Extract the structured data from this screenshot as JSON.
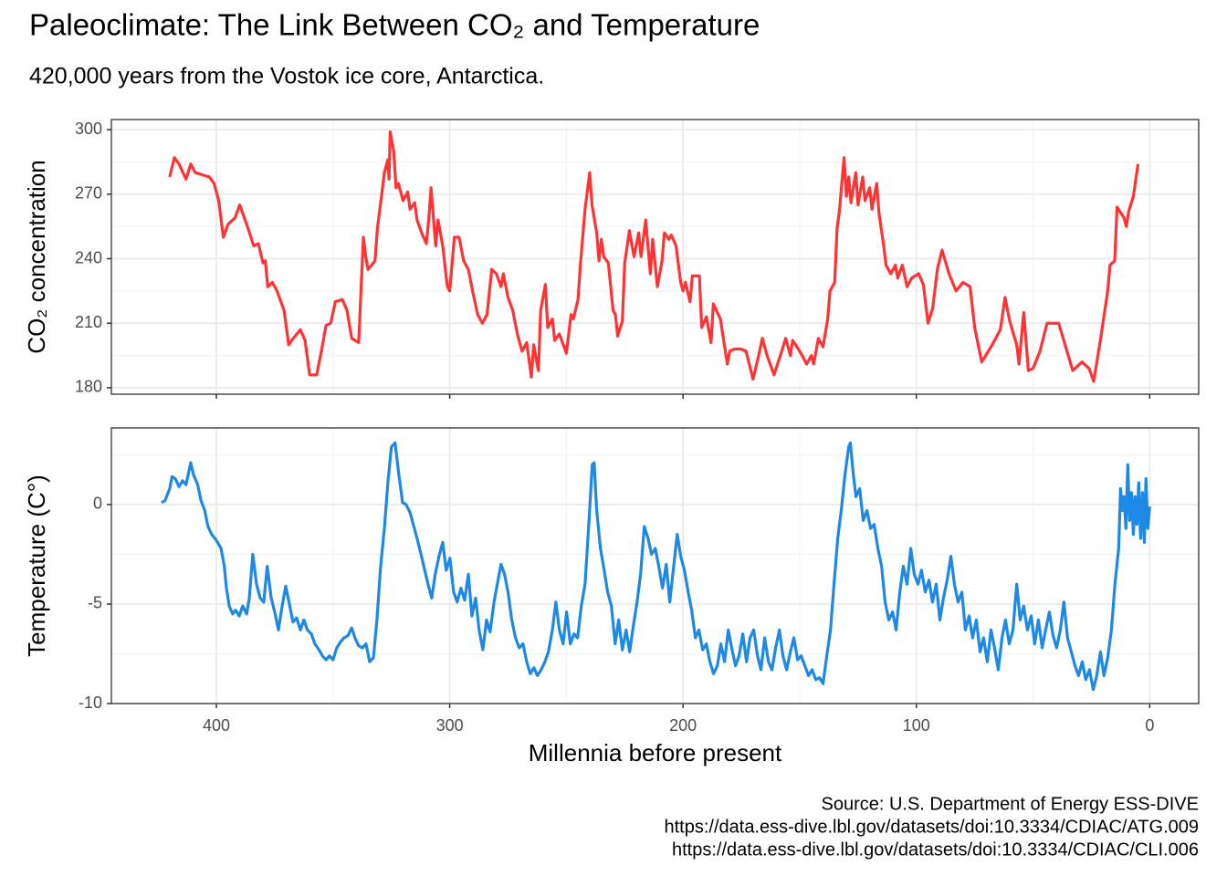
{
  "title": "Paleoclimate: The Link Between CO₂ and Temperature",
  "subtitle": "420,000 years from the Vostok ice core, Antarctica.",
  "caption": [
    "Source: U.S. Department of Energy ESS-DIVE",
    "https://data.ess-dive.lbl.gov/datasets/doi:10.3334/CDIAC/ATG.009",
    "https://data.ess-dive.lbl.gov/datasets/doi:10.3334/CDIAC/CLI.006"
  ],
  "chart_data": [
    {
      "type": "line",
      "ylabel": "CO₂ concentration",
      "color": "#ff3333",
      "grid": true,
      "show_x_tick_labels": false,
      "xlim": [
        445,
        -21
      ],
      "xticks": [
        400,
        300,
        200,
        100,
        0
      ],
      "x_minor_grid": [
        350,
        250,
        150,
        50
      ],
      "ylim": [
        177,
        304.7
      ],
      "yticks": [
        180,
        210,
        240,
        270,
        300
      ],
      "y_minor_grid": [
        195,
        225,
        255,
        285
      ],
      "x": [
        420,
        418,
        416,
        413,
        411,
        409,
        403,
        401,
        399,
        397,
        395,
        392,
        390,
        387,
        384,
        382,
        380,
        379,
        378,
        376,
        374,
        371,
        369,
        367,
        364,
        362,
        360,
        357,
        355,
        353,
        351,
        349,
        346,
        344,
        342,
        339,
        337,
        336,
        335,
        332,
        331,
        329,
        328,
        326.5,
        326,
        325.5,
        324,
        323,
        322,
        320,
        318,
        317,
        315,
        314,
        312,
        310,
        309,
        308,
        306,
        305,
        303,
        301,
        300,
        298,
        296,
        294,
        292,
        290,
        288,
        286,
        284,
        282,
        280,
        278,
        277,
        275,
        273,
        271,
        269,
        267,
        265,
        264,
        262,
        261,
        259,
        258,
        256,
        255,
        253,
        250,
        248,
        247,
        245,
        244,
        242,
        240,
        239,
        237,
        236,
        235,
        234,
        232,
        230,
        229,
        228,
        226,
        225,
        223,
        221,
        219,
        218,
        216,
        214,
        213,
        211,
        209,
        208,
        206,
        205,
        203,
        201,
        200,
        199,
        197,
        196,
        193,
        192,
        190,
        188,
        187,
        184,
        181,
        180,
        178,
        175,
        173,
        170,
        168,
        166,
        164,
        161,
        158,
        156,
        154,
        153,
        150,
        147,
        145,
        144,
        142,
        140,
        138,
        137,
        135,
        134,
        133,
        131,
        130,
        129,
        128,
        126,
        125,
        123,
        122,
        120,
        119,
        117,
        116,
        114,
        113,
        111,
        109,
        108,
        106,
        104,
        102,
        99,
        97,
        95,
        93,
        91,
        89,
        86,
        83,
        80,
        77,
        75,
        72,
        68,
        64,
        62,
        60,
        57,
        56,
        54,
        52,
        50,
        47,
        44,
        39,
        33,
        29,
        26,
        24,
        21,
        18,
        17,
        15,
        14,
        11,
        10,
        9,
        7,
        5
      ],
      "values": [
        278,
        287,
        284,
        277,
        284,
        280,
        278,
        275,
        267,
        250,
        256,
        259,
        265,
        256,
        246,
        247,
        238,
        239,
        227,
        229,
        225,
        216,
        200,
        203,
        207,
        202,
        186,
        186,
        197,
        209,
        210,
        220,
        221,
        216,
        203,
        201,
        250,
        241,
        235,
        239,
        254,
        271,
        280,
        286,
        277,
        299,
        290,
        273,
        275,
        267,
        271,
        263,
        266,
        258,
        252,
        247,
        258,
        273,
        246,
        258,
        246,
        227,
        225,
        250,
        250,
        239,
        235,
        224,
        214,
        210,
        214,
        235,
        233,
        227,
        233,
        222,
        216,
        205,
        197,
        201,
        185,
        200,
        188,
        216,
        228,
        208,
        212,
        202,
        205,
        196,
        214,
        212,
        221,
        237,
        263,
        280,
        265,
        252,
        239,
        249,
        241,
        238,
        216,
        214,
        204,
        211,
        238,
        253,
        241,
        252,
        241,
        258,
        233,
        249,
        227,
        239,
        252,
        249,
        251,
        246,
        229,
        225,
        229,
        220,
        232,
        232,
        208,
        213,
        201,
        219,
        212,
        191,
        197,
        198,
        198,
        197,
        184,
        193,
        203,
        195,
        186,
        196,
        203,
        195,
        202,
        197,
        191,
        195,
        191,
        203,
        199,
        212,
        225,
        229,
        254,
        262,
        287,
        269,
        278,
        266,
        280,
        265,
        278,
        267,
        273,
        263,
        275,
        261,
        246,
        237,
        233,
        237,
        231,
        237,
        227,
        231,
        233,
        228,
        210,
        217,
        235,
        244,
        233,
        225,
        229,
        227,
        208,
        192,
        199,
        207,
        222,
        211,
        200,
        191,
        215,
        188,
        189,
        197,
        210,
        210,
        188,
        192,
        189,
        183,
        203,
        225,
        237,
        239,
        264,
        259,
        255,
        262,
        269,
        284
      ]
    },
    {
      "type": "line",
      "ylabel": "Temperature (C°)",
      "xlabel": "Millennia before present",
      "color": "#1e88e5",
      "grid": true,
      "show_x_tick_labels": true,
      "xlim": [
        445,
        -21
      ],
      "xticks": [
        400,
        300,
        200,
        100,
        0
      ],
      "x_minor_grid": [
        350,
        250,
        150,
        50
      ],
      "ylim": [
        -10,
        3.85
      ],
      "yticks": [
        -10,
        -5,
        0
      ],
      "y_minor_grid": [
        -7.5,
        -2.5,
        2.5
      ],
      "x": [
        423.5,
        422,
        420,
        419,
        417.6,
        416,
        414.5,
        413,
        411,
        409.8,
        408,
        406.6,
        405,
        403.6,
        402,
        400,
        398,
        396.6,
        395.7,
        394.5,
        393,
        391.8,
        390.2,
        388.7,
        387,
        385.9,
        384.4,
        382.8,
        381.2,
        379.7,
        378.2,
        376.5,
        375,
        373.4,
        371.8,
        370.3,
        368.7,
        367.2,
        365.6,
        364,
        362.5,
        361,
        359.3,
        357.8,
        356,
        354.6,
        353,
        351.5,
        350,
        348.4,
        346.8,
        345.3,
        343.7,
        342,
        340.6,
        339,
        337.4,
        335.9,
        334.3,
        332.7,
        331.2,
        329.6,
        328,
        326.5,
        325,
        323.4,
        321.8,
        320.2,
        318.7,
        317,
        315.6,
        314,
        312.5,
        310.9,
        309.3,
        307.7,
        306.2,
        304.6,
        303,
        301.5,
        299.9,
        298.3,
        296.8,
        295.2,
        293.6,
        292,
        290.5,
        288.9,
        287.4,
        285.8,
        284.2,
        282.7,
        281,
        279.6,
        278,
        276.5,
        275,
        273.4,
        271.8,
        270.2,
        268.6,
        267,
        265.5,
        263.9,
        262.4,
        260.8,
        259.2,
        257.7,
        256,
        254.5,
        253,
        251.4,
        249.9,
        248.3,
        246.7,
        245.2,
        243.6,
        242,
        240.5,
        238.9,
        238.1,
        237,
        235.4,
        233.8,
        232.3,
        230.7,
        229.1,
        227.6,
        226,
        224.4,
        222.9,
        221.3,
        219.7,
        218.2,
        216.6,
        215,
        213.5,
        211.9,
        210.4,
        208.8,
        207.2,
        205.7,
        204,
        202.5,
        201,
        199.4,
        197.8,
        196.3,
        194.7,
        193.2,
        191.6,
        190,
        188.5,
        186.9,
        185.3,
        183.8,
        182.2,
        180.6,
        179,
        177.5,
        176,
        174.4,
        172.8,
        171.3,
        169.7,
        168.1,
        166.6,
        165,
        163.4,
        161.9,
        160.3,
        158.7,
        157.2,
        155.6,
        154,
        152.5,
        150.9,
        149.4,
        147.8,
        146.2,
        144.7,
        143.1,
        141.5,
        140,
        138.4,
        136.8,
        135.3,
        133.7,
        132.2,
        130.6,
        129,
        128.3,
        127,
        125.9,
        124.3,
        122.8,
        121.2,
        119.6,
        118.1,
        116.5,
        114.9,
        113.4,
        111.8,
        110.2,
        108.7,
        107.1,
        105.6,
        104,
        102.4,
        100.9,
        99.3,
        97.8,
        96.2,
        94.6,
        93.1,
        91.5,
        89.9,
        88.4,
        86.8,
        85.2,
        83.7,
        82.1,
        80.5,
        79,
        77.4,
        75.9,
        74.3,
        72.7,
        71.2,
        69.6,
        68,
        66.5,
        64.9,
        63.3,
        61.8,
        60.2,
        58.6,
        57,
        55.5,
        54,
        52.4,
        50.8,
        49.3,
        47.7,
        46.1,
        44.6,
        43,
        41.4,
        39.9,
        38.3,
        36.8,
        35.2,
        33.6,
        32,
        30.5,
        28.9,
        27.4,
        25.8,
        24.2,
        22.7,
        21.1,
        19.6,
        18,
        16.4,
        14.9,
        13.3,
        12.5,
        11.7,
        11,
        10.2,
        9.4,
        8.6,
        7.8,
        7,
        6.3,
        5.5,
        4.7,
        3.9,
        3.1,
        2.3,
        1.6,
        0.8,
        0
      ],
      "values": [
        0.1,
        0.2,
        0.8,
        1.4,
        1.3,
        0.9,
        1.2,
        1,
        2.1,
        1.5,
        1,
        0.2,
        -0.3,
        -1.1,
        -1.5,
        -1.8,
        -2.2,
        -3.1,
        -4.2,
        -5.1,
        -5.5,
        -5.3,
        -5.6,
        -5.1,
        -5.5,
        -4.7,
        -2.5,
        -4,
        -4.7,
        -4.9,
        -3.1,
        -4.7,
        -5.4,
        -6.3,
        -5.1,
        -4.1,
        -5,
        -5.9,
        -5.7,
        -6.3,
        -5.8,
        -6.3,
        -6.5,
        -7,
        -7.3,
        -7.6,
        -7.8,
        -7.6,
        -7.8,
        -7.2,
        -6.9,
        -6.7,
        -6.6,
        -6.2,
        -6.7,
        -7.1,
        -7.2,
        -7,
        -7.9,
        -7.7,
        -5.8,
        -3.1,
        -1.2,
        1.1,
        2.9,
        3.1,
        1.5,
        0.1,
        0,
        -0.4,
        -1,
        -1.7,
        -2.4,
        -3.2,
        -4,
        -4.7,
        -3.5,
        -2.6,
        -1.9,
        -3.3,
        -2.7,
        -4.4,
        -4.9,
        -4.2,
        -4.8,
        -3.5,
        -5.6,
        -4.7,
        -6.3,
        -7.3,
        -5.8,
        -6.4,
        -4.9,
        -4,
        -3,
        -3.5,
        -4.4,
        -5.8,
        -6.7,
        -7.2,
        -7,
        -7.9,
        -8.5,
        -8.2,
        -8.6,
        -8.3,
        -7.9,
        -7.4,
        -6.3,
        -4.9,
        -6.3,
        -7,
        -5.4,
        -7,
        -6.5,
        -6.7,
        -5.1,
        -4,
        -1.2,
        2,
        2.1,
        -0.3,
        -2.2,
        -3.3,
        -4.4,
        -5.1,
        -7,
        -5.8,
        -7.3,
        -6.3,
        -7.4,
        -6.1,
        -4.9,
        -3.5,
        -1.1,
        -1.7,
        -2.5,
        -2.2,
        -3.1,
        -4.2,
        -3,
        -4.9,
        -3.1,
        -1.5,
        -2.6,
        -3.3,
        -4.4,
        -5.3,
        -6.7,
        -6.3,
        -7.3,
        -7,
        -7.9,
        -8.5,
        -8.1,
        -7,
        -7.9,
        -6.3,
        -7.3,
        -8.1,
        -7.6,
        -6.5,
        -7.9,
        -6.7,
        -6.3,
        -7.6,
        -8.3,
        -6.7,
        -7.9,
        -8.3,
        -7.2,
        -6.3,
        -7.6,
        -8.3,
        -7.4,
        -6.7,
        -7.8,
        -7.6,
        -8.1,
        -8.6,
        -8.3,
        -8.8,
        -8.7,
        -9,
        -7.6,
        -6.3,
        -4,
        -1.7,
        -0.3,
        1.5,
        2.9,
        3.1,
        1.5,
        0.4,
        0.8,
        -0.8,
        -0.3,
        -1.2,
        -1,
        -2.2,
        -3.1,
        -4.9,
        -5.8,
        -5.4,
        -6.3,
        -4.4,
        -3.1,
        -4,
        -2.2,
        -3.5,
        -4,
        -3.3,
        -4.4,
        -3.8,
        -4.9,
        -4,
        -5.8,
        -4.7,
        -3.8,
        -2.6,
        -4,
        -4.9,
        -4.4,
        -6.3,
        -5.6,
        -6.7,
        -5.8,
        -7.4,
        -6.7,
        -7.9,
        -6.3,
        -7.2,
        -8.3,
        -6.7,
        -5.8,
        -7,
        -6.3,
        -4,
        -5.8,
        -5.1,
        -6.3,
        -5.6,
        -7,
        -5.8,
        -7.2,
        -6.3,
        -5.4,
        -6.6,
        -7.2,
        -6.3,
        -4.9,
        -6.7,
        -7.4,
        -8.1,
        -8.6,
        -7.9,
        -8.8,
        -8.3,
        -9.3,
        -8.6,
        -7.4,
        -8.6,
        -7.7,
        -6.3,
        -4,
        -2.2,
        0.8,
        -0.3,
        0.4,
        -1.2,
        2,
        -0.8,
        0.6,
        -1.5,
        0.4,
        -1,
        1.1,
        -1.7,
        0.6,
        -1.9,
        1.3,
        -1.2,
        -0.1
      ]
    }
  ]
}
